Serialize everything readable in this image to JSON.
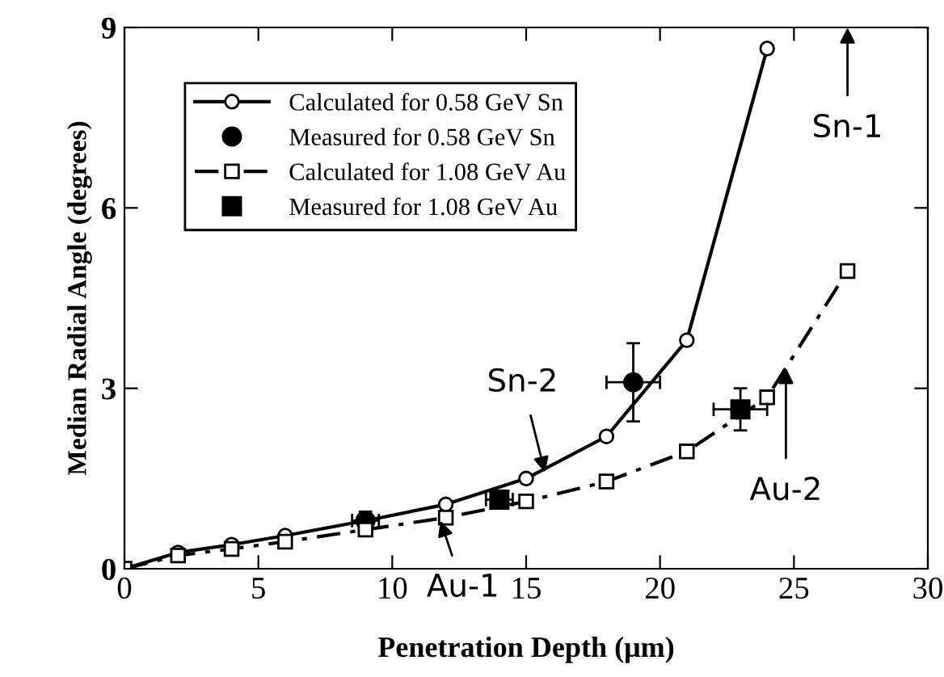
{
  "chart_data": {
    "type": "line",
    "xlabel": "Penetration Depth (μm)",
    "ylabel": "Median Radial Angle (degrees)",
    "xlim": [
      0,
      30
    ],
    "xticks": [
      0,
      5,
      10,
      15,
      20,
      25,
      30
    ],
    "ylim": [
      0,
      9
    ],
    "yticks": [
      0,
      3,
      6,
      9
    ],
    "grid": false,
    "legend": "top left",
    "series": [
      {
        "name": "Calculated for 0.58 GeV Sn",
        "color": "#000000",
        "marker": "circle",
        "line_style": "solid",
        "x": [
          0,
          2,
          4,
          6,
          9,
          12,
          15,
          18,
          21,
          24
        ],
        "values": [
          0,
          0.27,
          0.4,
          0.55,
          0.8,
          1.07,
          1.5,
          2.2,
          3.8,
          8.65
        ]
      },
      {
        "name": "Measured for 0.58 GeV Sn",
        "type": "scatter",
        "color": "#000000",
        "marker": "circle",
        "x": [
          9,
          19
        ],
        "values": [
          0.8,
          3.1
        ],
        "errors": [
          0.15,
          0.65
        ],
        "xerrors": [
          0.5,
          1
        ]
      },
      {
        "name": "Calculated for 1.08 GeV Au",
        "color": "#000000",
        "marker": "square",
        "line_style": "dashed",
        "x": [
          0,
          2,
          4,
          6,
          9,
          12,
          15,
          18,
          21,
          24,
          27
        ],
        "values": [
          0,
          0.22,
          0.33,
          0.45,
          0.65,
          0.85,
          1.12,
          1.45,
          1.95,
          2.85,
          4.95
        ]
      },
      {
        "name": "Measured for 1.08 GeV Au",
        "type": "scatter",
        "color": "#000000",
        "marker": "square",
        "x": [
          14,
          23
        ],
        "values": [
          1.15,
          2.65
        ],
        "errors": [
          0.15,
          0.35
        ],
        "xerrors": [
          0.5,
          1
        ]
      }
    ],
    "annotations": [
      "Sn-1",
      {
        "text": "Sn-2",
        "x": 15.7,
        "y": 1.6
      },
      {
        "text": "Au-1",
        "x": 11.8,
        "y": 0.8
      },
      {
        "text": "Au-2",
        "x": 24.7,
        "y": 3.34
      }
    ]
  }
}
